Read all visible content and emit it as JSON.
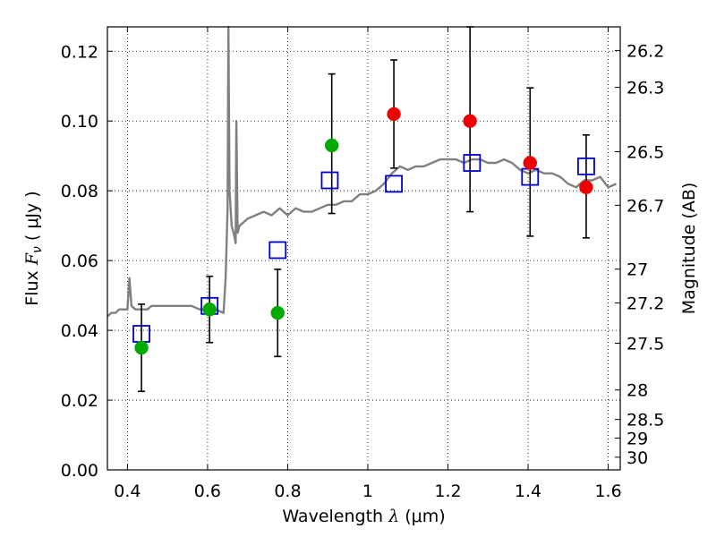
{
  "chart_data": {
    "type": "scatter",
    "xlabel": "Wavelength  λ (μm)",
    "ylabel": "Flux  F_ν  ( μJy )",
    "ylabel_parts": {
      "pre": "Flux ",
      "italic": "F",
      "sub": "ν",
      "post": "  ( μJy )"
    },
    "xlabel_parts": {
      "pre": "Wavelength  ",
      "italic": "λ",
      "post": " (μm)"
    },
    "y2label": "Magnitude (AB)",
    "xlim": [
      0.35,
      1.63
    ],
    "ylim": [
      0.0,
      0.127
    ],
    "grid": true,
    "x_ticks": [
      "0.4",
      "0.6",
      "0.8",
      "1",
      "1.2",
      "1.4",
      "1.6"
    ],
    "y_ticks": [
      "0.00",
      "0.02",
      "0.04",
      "0.06",
      "0.08",
      "0.10",
      "0.12"
    ],
    "y2_ticks": [
      "26.2",
      "26.3",
      "26.5",
      "26.7",
      "27",
      "27.2",
      "27.5",
      "28",
      "28.5",
      "29",
      "30"
    ],
    "colors": {
      "spectrum": "#808080",
      "model": "#0000cc",
      "green": "#00aa00",
      "red": "#ee0000",
      "errorbar": "#000000"
    },
    "series": [
      {
        "type": "line",
        "color": "gray",
        "x": [
          0.35,
          0.36,
          0.37,
          0.38,
          0.39,
          0.4,
          0.405,
          0.41,
          0.42,
          0.43,
          0.44,
          0.45,
          0.46,
          0.48,
          0.5,
          0.52,
          0.54,
          0.56,
          0.58,
          0.6,
          0.62,
          0.64,
          0.645,
          0.65,
          0.652,
          0.655,
          0.66,
          0.665,
          0.67,
          0.672,
          0.675,
          0.68,
          0.7,
          0.72,
          0.74,
          0.76,
          0.78,
          0.8,
          0.82,
          0.84,
          0.86,
          0.88,
          0.9,
          0.92,
          0.94,
          0.96,
          0.98,
          1.0,
          1.02,
          1.04,
          1.06,
          1.08,
          1.1,
          1.12,
          1.14,
          1.16,
          1.18,
          1.2,
          1.22,
          1.24,
          1.26,
          1.28,
          1.3,
          1.32,
          1.34,
          1.36,
          1.38,
          1.4,
          1.42,
          1.44,
          1.46,
          1.48,
          1.5,
          1.52,
          1.54,
          1.56,
          1.58,
          1.6,
          1.62
        ],
        "y": [
          0.044,
          0.045,
          0.045,
          0.046,
          0.046,
          0.046,
          0.055,
          0.047,
          0.046,
          0.046,
          0.046,
          0.046,
          0.047,
          0.047,
          0.047,
          0.047,
          0.047,
          0.047,
          0.046,
          0.046,
          0.046,
          0.045,
          0.055,
          0.075,
          0.127,
          0.08,
          0.07,
          0.068,
          0.065,
          0.1,
          0.068,
          0.07,
          0.072,
          0.073,
          0.074,
          0.073,
          0.075,
          0.073,
          0.075,
          0.074,
          0.074,
          0.075,
          0.076,
          0.076,
          0.077,
          0.077,
          0.079,
          0.079,
          0.08,
          0.082,
          0.085,
          0.087,
          0.086,
          0.087,
          0.087,
          0.088,
          0.089,
          0.089,
          0.089,
          0.088,
          0.089,
          0.089,
          0.088,
          0.088,
          0.089,
          0.088,
          0.086,
          0.085,
          0.086,
          0.085,
          0.085,
          0.084,
          0.082,
          0.081,
          0.083,
          0.083,
          0.084,
          0.081,
          0.082
        ]
      },
      {
        "type": "scatter",
        "marker": "open-square",
        "color": "blue",
        "x": [
          0.435,
          0.605,
          0.775,
          0.905,
          1.065,
          1.26,
          1.405,
          1.545
        ],
        "y": [
          0.039,
          0.047,
          0.063,
          0.083,
          0.082,
          0.088,
          0.084,
          0.087
        ]
      },
      {
        "type": "scatter",
        "marker": "filled-circle",
        "color": "green",
        "x": [
          0.435,
          0.605,
          0.775,
          0.91
        ],
        "y": [
          0.035,
          0.046,
          0.045,
          0.093
        ],
        "yerr_low": [
          0.0125,
          0.0095,
          0.0125,
          0.0195
        ],
        "yerr_high": [
          0.0125,
          0.0095,
          0.0125,
          0.0205
        ]
      },
      {
        "type": "scatter",
        "marker": "filled-circle",
        "color": "red",
        "x": [
          1.065,
          1.255,
          1.405,
          1.545
        ],
        "y": [
          0.102,
          0.1,
          0.088,
          0.081
        ],
        "yerr_low": [
          0.0155,
          0.026,
          0.021,
          0.0145
        ],
        "yerr_high": [
          0.0155,
          0.027,
          0.0215,
          0.015
        ]
      }
    ]
  }
}
